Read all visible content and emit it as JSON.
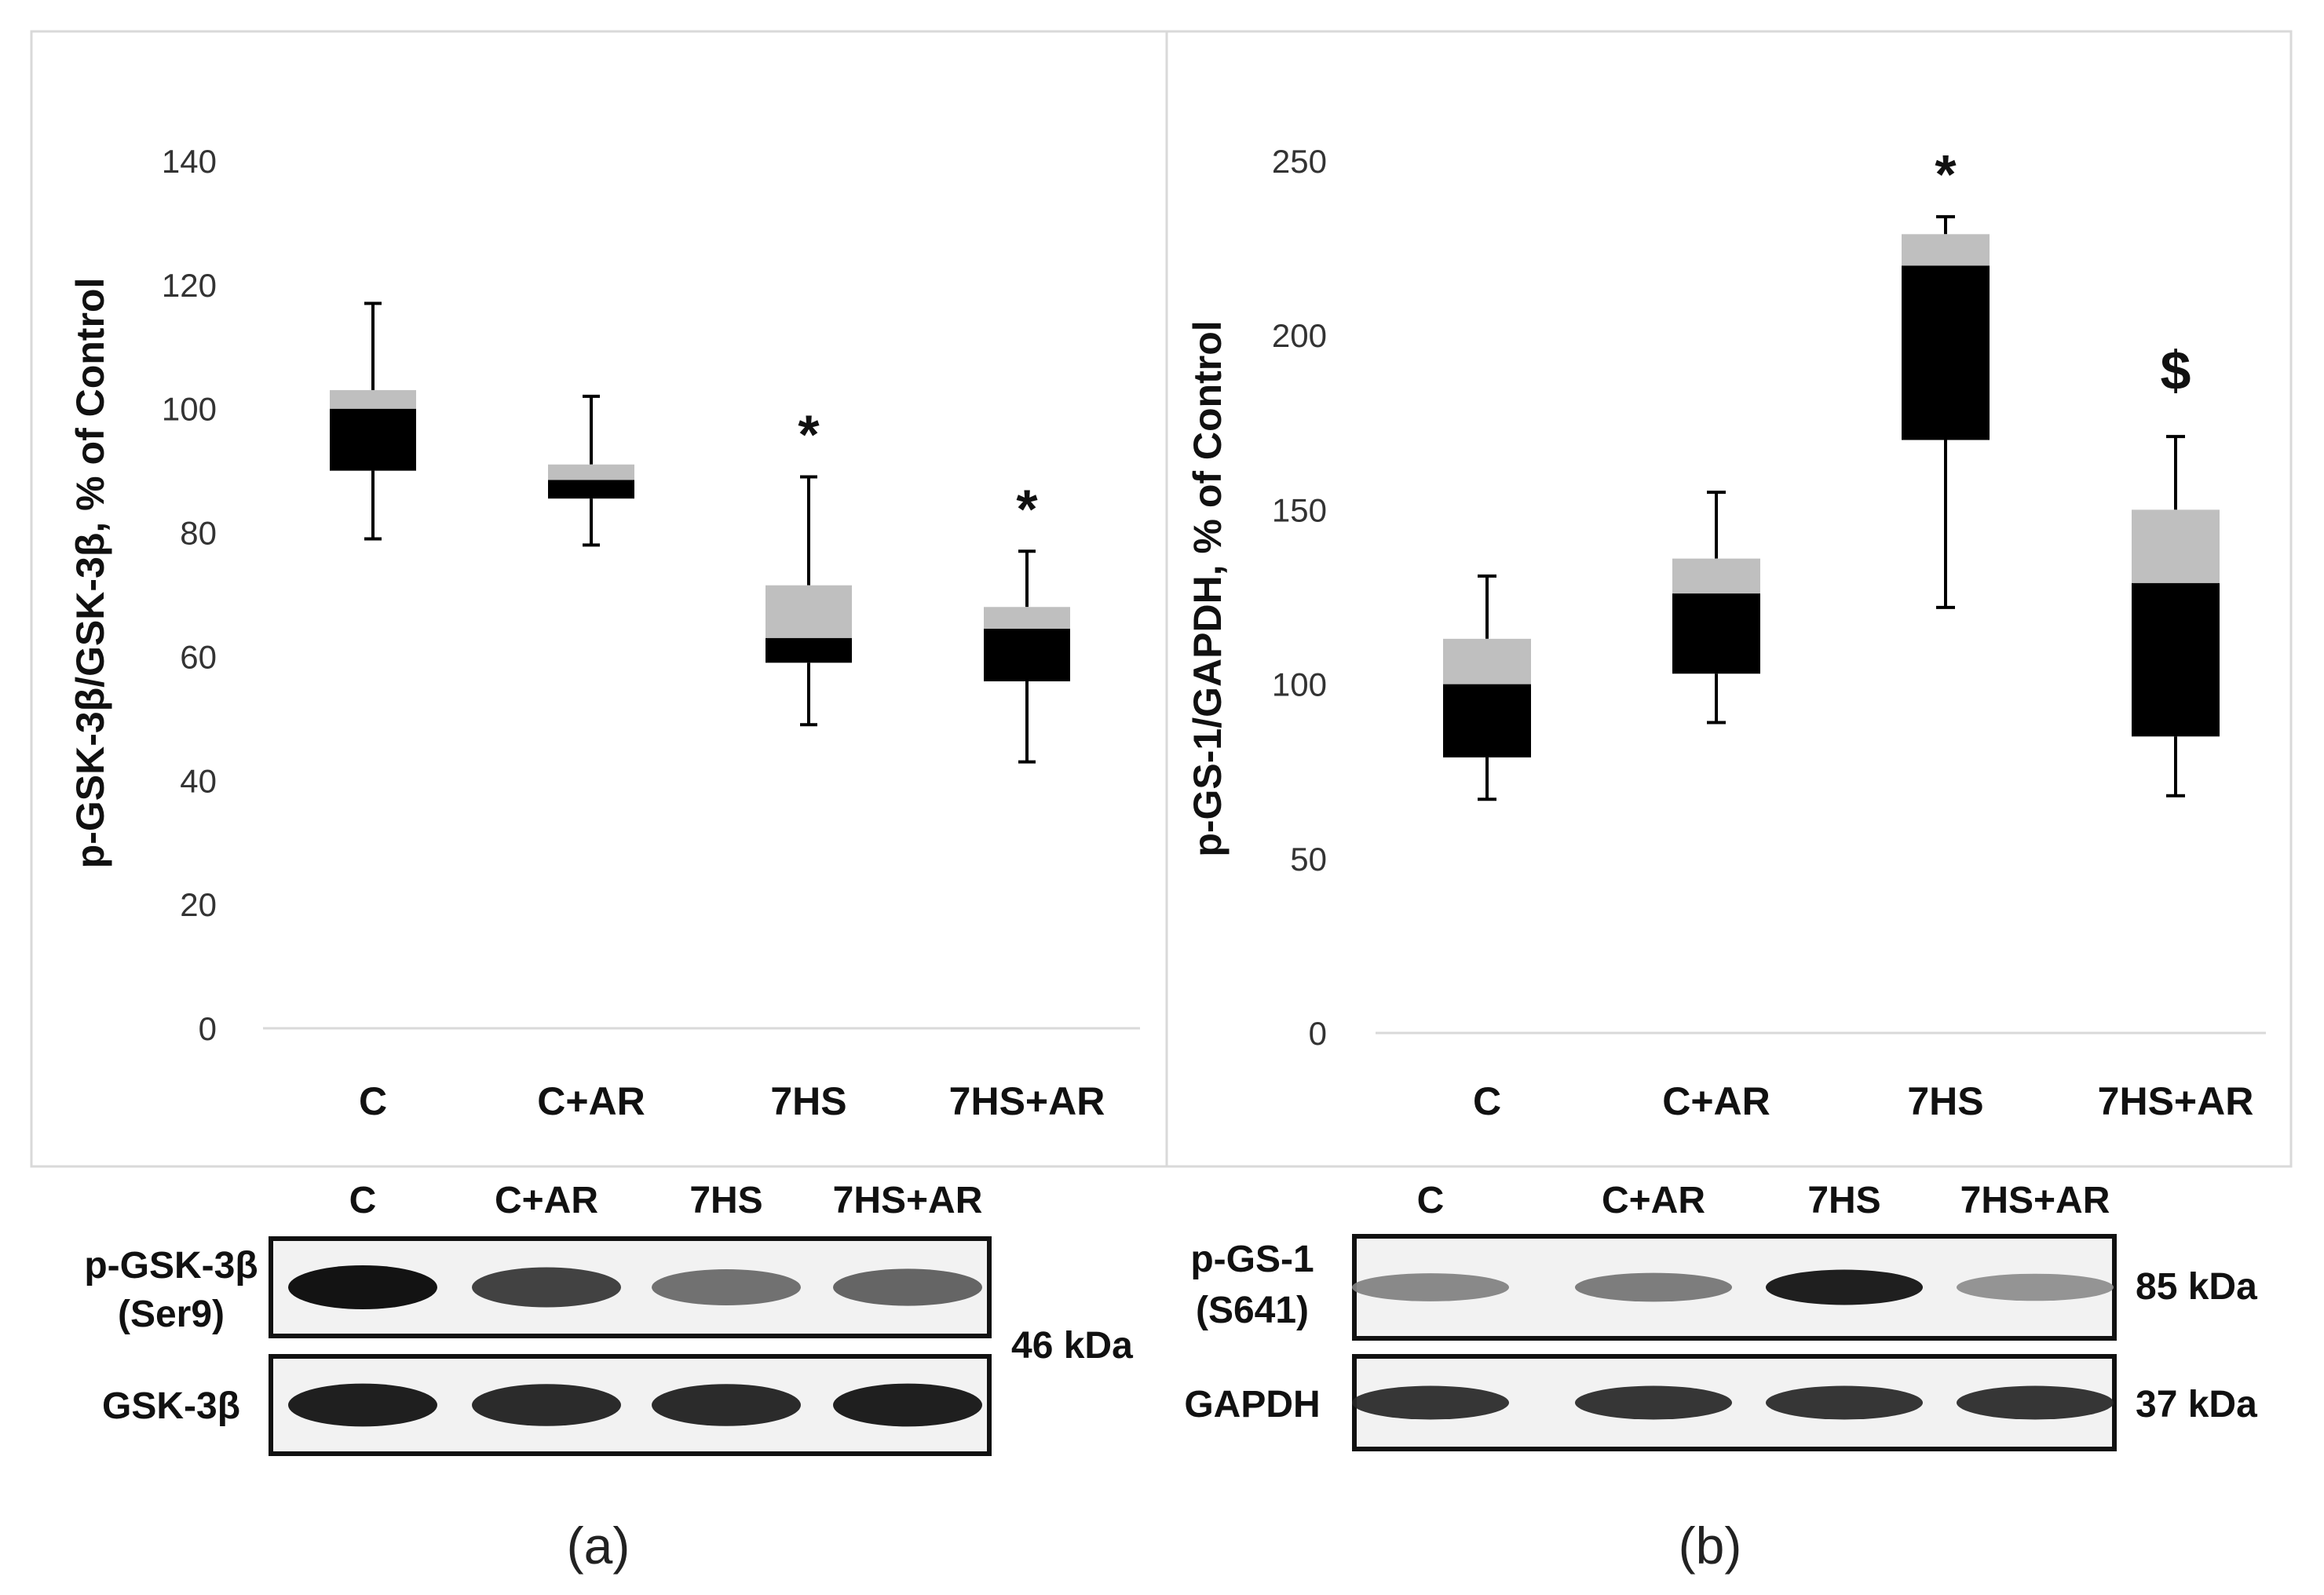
{
  "chart_data": [
    {
      "type": "box",
      "panel_label": "(a)",
      "ylabel": "p-GSK-3β/GSK-3β, % of Control",
      "ylim": [
        0,
        140
      ],
      "yticks": [
        0,
        20,
        40,
        60,
        80,
        100,
        120,
        140
      ],
      "categories": [
        "C",
        "C+AR",
        "7HS",
        "7HS+AR"
      ],
      "boxes": [
        {
          "min": 79,
          "q1": 90,
          "median": 100,
          "q3": 103,
          "max": 117,
          "marker": ""
        },
        {
          "min": 78,
          "q1": 85.5,
          "median": 88.5,
          "q3": 91,
          "max": 102,
          "marker": ""
        },
        {
          "min": 49,
          "q1": 59,
          "median": 63,
          "q3": 71.5,
          "max": 89,
          "marker": "*"
        },
        {
          "min": 43,
          "q1": 56,
          "median": 64.5,
          "q3": 68,
          "max": 77,
          "marker": "*"
        }
      ],
      "colors": {
        "lower_box": "#000000",
        "upper_box": "#bfbfbf"
      },
      "blot": {
        "lanes": [
          "C",
          "C+AR",
          "7HS",
          "7HS+AR"
        ],
        "rows": [
          {
            "label_lines": [
              "p-GSK-3β",
              "(Ser9)"
            ],
            "intensity": [
              1.0,
              0.8,
              0.6,
              0.65
            ]
          },
          {
            "label_lines": [
              "GSK-3β"
            ],
            "intensity": [
              0.95,
              0.9,
              0.9,
              0.95
            ]
          }
        ],
        "size_labels": [
          "46 kDa"
        ]
      }
    },
    {
      "type": "box",
      "panel_label": "(b)",
      "ylabel": "p-GS-1/GAPDH, % of Control",
      "ylim": [
        0,
        250
      ],
      "yticks": [
        0,
        50,
        100,
        150,
        200,
        250
      ],
      "categories": [
        "C",
        "C+AR",
        "7HS",
        "7HS+AR"
      ],
      "boxes": [
        {
          "min": 67,
          "q1": 79,
          "median": 100,
          "q3": 113,
          "max": 131,
          "marker": ""
        },
        {
          "min": 89,
          "q1": 103,
          "median": 126,
          "q3": 136,
          "max": 155,
          "marker": ""
        },
        {
          "min": 122,
          "q1": 170,
          "median": 220,
          "q3": 229,
          "max": 234,
          "marker": "*"
        },
        {
          "min": 68,
          "q1": 85,
          "median": 129,
          "q3": 150,
          "max": 171,
          "marker": "$"
        }
      ],
      "colors": {
        "lower_box": "#000000",
        "upper_box": "#bfbfbf"
      },
      "blot": {
        "lanes": [
          "C",
          "C+AR",
          "7HS",
          "7HS+AR"
        ],
        "rows": [
          {
            "label_lines": [
              "p-GS-1",
              "(S641)"
            ],
            "intensity": [
              0.5,
              0.55,
              0.95,
              0.45
            ]
          },
          {
            "label_lines": [
              "GAPDH"
            ],
            "intensity": [
              0.85,
              0.85,
              0.85,
              0.85
            ]
          }
        ],
        "size_labels": [
          "85 kDa",
          "37 kDa"
        ]
      }
    }
  ]
}
